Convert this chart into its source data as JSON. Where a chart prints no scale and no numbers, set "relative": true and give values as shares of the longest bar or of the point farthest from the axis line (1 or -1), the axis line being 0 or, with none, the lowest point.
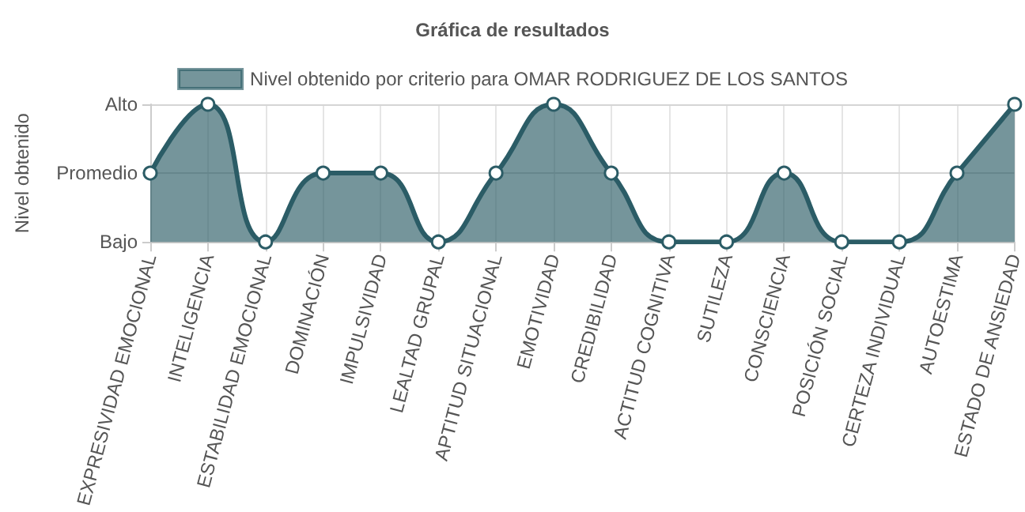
{
  "chart_data": {
    "type": "area",
    "title": "Gráfica de resultados",
    "ylabel": "Nivel obtenido",
    "categories": [
      "EXPRESIVIDAD EMOCIONAL",
      "INTELIGENCIA",
      "ESTABILIDAD EMOCIONAL",
      "DOMINACIÓN",
      "IMPULSIVIDAD",
      "LEALTAD GRUPAL",
      "APTITUD SITUACIONAL",
      "EMOTIVIDAD",
      "CREDIBILIDAD",
      "ACTITUD COGNITIVA",
      "SUTILEZA",
      "CONSCIENCIA",
      "POSICIÓN SOCIAL",
      "CERTEZA INDIVIDUAL",
      "AUTOESTIMA",
      "ESTADO DE ANSIEDAD"
    ],
    "series": [
      {
        "name": "Nivel obtenido por criterio para OMAR RODRIGUEZ DE LOS SANTOS",
        "color": "#2b5c66",
        "values": [
          0.5,
          1,
          0,
          0.5,
          0.5,
          0,
          0.5,
          1,
          0.5,
          0,
          0,
          0.5,
          0,
          0,
          0.5,
          1
        ]
      }
    ],
    "relative": true,
    "annotations": [
      "Bajo",
      "Promedio",
      "Alto"
    ],
    "ref_lines": [
      {
        "axis": "y",
        "value": 0.5,
        "color": "#d5d5d5"
      },
      {
        "axis": "y",
        "value": 1,
        "color": "#d5d5d5"
      }
    ],
    "grid": "x",
    "legend": "top",
    "marker": "circle"
  }
}
